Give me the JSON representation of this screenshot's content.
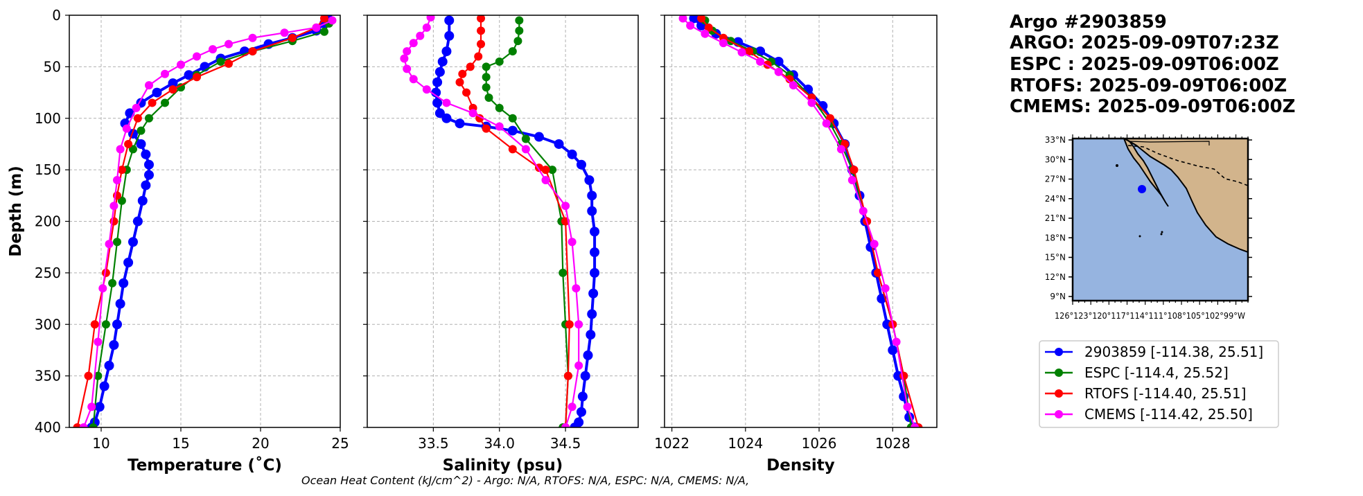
{
  "title_block": {
    "lines": [
      "Argo #2903859",
      "ARGO: 2025-09-09T07:23Z",
      "ESPC : 2025-09-09T06:00Z",
      "RTOFS: 2025-09-09T06:00Z",
      "CMEMS: 2025-09-09T06:00Z"
    ]
  },
  "footer": "Ocean Heat Content (kJ/cm^2) - Argo: N/A,  RTOFS: N/A,  ESPC: N/A,  CMEMS: N/A,",
  "colors": {
    "argo": "#0000ff",
    "espc": "#008000",
    "rtofs": "#ff0000",
    "cmems": "#ff00ff",
    "ocean": "#96b4e0",
    "land": "#d2b48c"
  },
  "legend": [
    {
      "label": "2903859 [-114.38, 25.51]",
      "color": "#0000ff"
    },
    {
      "label": "ESPC [-114.4, 25.52]",
      "color": "#008000"
    },
    {
      "label": "RTOFS [-114.40, 25.51]",
      "color": "#ff0000"
    },
    {
      "label": "CMEMS [-114.42, 25.50]",
      "color": "#ff00ff"
    }
  ],
  "map": {
    "lat_ticks": [
      "33°N",
      "30°N",
      "27°N",
      "24°N",
      "21°N",
      "18°N",
      "15°N",
      "12°N",
      "9°N"
    ],
    "lon_label_text": "126°123°120°117°114°111°108°105°102°99°W",
    "float_position": {
      "lon": -114.38,
      "lat": 25.51
    }
  },
  "chart_data": [
    {
      "type": "line",
      "name": "temperature",
      "xlabel": "Temperature (˚C)",
      "ylabel": "Depth (m)",
      "xlim": [
        8,
        25
      ],
      "ylim": [
        400,
        0
      ],
      "xticks": [
        10,
        15,
        20,
        25
      ],
      "yticks": [
        0,
        50,
        100,
        150,
        200,
        250,
        300,
        350,
        400
      ],
      "grid": true,
      "series": [
        {
          "name": "2903859",
          "color": "#0000ff",
          "x": [
            24.2,
            24.0,
            23.5,
            22.0,
            20.5,
            19.0,
            17.5,
            16.5,
            15.5,
            14.5,
            13.5,
            12.5,
            11.8,
            11.5,
            12.0,
            12.5,
            12.8,
            13.0,
            13.0,
            12.8,
            12.6,
            12.3,
            12.0,
            11.7,
            11.4,
            11.2,
            11.0,
            10.8,
            10.5,
            10.2,
            9.9,
            9.6,
            9.4
          ],
          "y": [
            2,
            8,
            15,
            22,
            28,
            35,
            42,
            50,
            58,
            66,
            75,
            85,
            95,
            105,
            115,
            125,
            135,
            145,
            155,
            165,
            180,
            200,
            220,
            240,
            260,
            280,
            300,
            320,
            340,
            360,
            380,
            395,
            400
          ]
        },
        {
          "name": "ESPC",
          "color": "#008000",
          "x": [
            24.3,
            24.0,
            22.0,
            19.5,
            17.5,
            16.0,
            15.0,
            14.0,
            13.0,
            12.5,
            12.0,
            11.6,
            11.3,
            11.0,
            10.7,
            10.3,
            9.8,
            9.5
          ],
          "y": [
            8,
            16,
            25,
            35,
            45,
            58,
            70,
            85,
            100,
            112,
            130,
            150,
            180,
            220,
            260,
            300,
            350,
            400
          ]
        },
        {
          "name": "RTOFS",
          "color": "#ff0000",
          "x": [
            24.0,
            23.5,
            22.0,
            19.5,
            18.0,
            16.0,
            14.5,
            13.2,
            12.3,
            11.7,
            11.3,
            11.0,
            10.8,
            10.3,
            9.6,
            9.2,
            8.5
          ],
          "y": [
            3,
            12,
            22,
            35,
            47,
            60,
            72,
            85,
            100,
            125,
            150,
            175,
            200,
            250,
            300,
            350,
            400
          ]
        },
        {
          "name": "CMEMS",
          "color": "#ff00ff",
          "x": [
            24.5,
            23.5,
            21.5,
            19.5,
            18.0,
            17.0,
            16.0,
            15.0,
            14.0,
            13.0,
            12.2,
            11.6,
            11.2,
            11.0,
            10.8,
            10.5,
            10.1,
            9.8,
            9.4,
            8.9
          ],
          "y": [
            5,
            12,
            17,
            22,
            28,
            33,
            40,
            48,
            57,
            68,
            90,
            110,
            130,
            160,
            185,
            222,
            265,
            317,
            380,
            400
          ]
        }
      ]
    },
    {
      "type": "line",
      "name": "salinity",
      "xlabel": "Salinity (psu)",
      "ylabel": "",
      "xlim": [
        33.0,
        35.05
      ],
      "ylim": [
        400,
        0
      ],
      "xticks": [
        33.5,
        34.0,
        34.5
      ],
      "yticks": [
        0,
        50,
        100,
        150,
        200,
        250,
        300,
        350,
        400
      ],
      "grid": true,
      "series": [
        {
          "name": "2903859",
          "color": "#0000ff",
          "x": [
            33.62,
            33.62,
            33.6,
            33.57,
            33.55,
            33.53,
            33.52,
            33.53,
            33.55,
            33.6,
            33.7,
            33.9,
            34.1,
            34.3,
            34.45,
            34.55,
            34.62,
            34.68,
            34.7,
            34.7,
            34.72,
            34.72,
            34.72,
            34.71,
            34.7,
            34.69,
            34.67,
            34.65,
            34.63,
            34.62,
            34.6,
            34.58,
            34.57
          ],
          "y": [
            5,
            20,
            35,
            45,
            55,
            65,
            75,
            85,
            95,
            100,
            105,
            108,
            112,
            118,
            125,
            135,
            145,
            160,
            175,
            190,
            210,
            230,
            250,
            270,
            290,
            310,
            330,
            350,
            370,
            385,
            395,
            400,
            400
          ]
        },
        {
          "name": "ESPC",
          "color": "#008000",
          "x": [
            34.15,
            34.15,
            34.14,
            34.1,
            34.0,
            33.9,
            33.9,
            33.9,
            33.92,
            34.0,
            34.1,
            34.2,
            34.4,
            34.47,
            34.48,
            34.5,
            34.52,
            34.5,
            34.48
          ],
          "y": [
            5,
            15,
            25,
            35,
            45,
            50,
            60,
            70,
            80,
            90,
            100,
            120,
            150,
            200,
            250,
            300,
            350,
            400,
            400
          ]
        },
        {
          "name": "RTOFS",
          "color": "#ff0000",
          "x": [
            33.86,
            33.86,
            33.86,
            33.84,
            33.78,
            33.72,
            33.7,
            33.75,
            33.8,
            33.85,
            33.9,
            34.1,
            34.3,
            34.35,
            34.5,
            34.53,
            34.52,
            34.5,
            34.5
          ],
          "y": [
            3,
            15,
            28,
            40,
            50,
            57,
            65,
            75,
            90,
            100,
            110,
            130,
            148,
            150,
            200,
            300,
            350,
            400,
            400
          ]
        },
        {
          "name": "CMEMS",
          "color": "#ff00ff",
          "x": [
            33.48,
            33.45,
            33.4,
            33.35,
            33.3,
            33.28,
            33.3,
            33.35,
            33.45,
            33.6,
            33.8,
            34.0,
            34.2,
            34.35,
            34.5,
            34.55,
            34.58,
            34.6,
            34.6,
            34.55,
            34.5
          ],
          "y": [
            2,
            12,
            20,
            27,
            35,
            42,
            52,
            62,
            72,
            85,
            95,
            108,
            130,
            160,
            185,
            220,
            265,
            300,
            340,
            380,
            400
          ]
        }
      ]
    },
    {
      "type": "line",
      "name": "density",
      "xlabel": "Density",
      "ylabel": "",
      "xlim": [
        1021.8,
        1029.2
      ],
      "ylim": [
        400,
        0
      ],
      "xticks": [
        1022,
        1024,
        1026,
        1028
      ],
      "yticks": [
        0,
        50,
        100,
        150,
        200,
        250,
        300,
        350,
        400
      ],
      "grid": true,
      "series": [
        {
          "name": "2903859",
          "color": "#0000ff",
          "x": [
            1022.6,
            1022.8,
            1023.2,
            1023.8,
            1024.4,
            1024.9,
            1025.3,
            1025.7,
            1026.1,
            1026.4,
            1026.7,
            1026.9,
            1027.1,
            1027.25,
            1027.4,
            1027.55,
            1027.7,
            1027.85,
            1028.0,
            1028.15,
            1028.3,
            1028.45,
            1028.55,
            1028.6
          ],
          "y": [
            3,
            10,
            18,
            26,
            35,
            45,
            58,
            72,
            88,
            105,
            125,
            150,
            175,
            200,
            225,
            250,
            275,
            300,
            325,
            350,
            370,
            390,
            400,
            400
          ]
        },
        {
          "name": "ESPC",
          "color": "#008000",
          "x": [
            1022.9,
            1023.1,
            1023.6,
            1024.2,
            1024.7,
            1025.2,
            1025.8,
            1026.3,
            1026.6,
            1026.9,
            1027.3,
            1027.6,
            1028.0,
            1028.3,
            1028.5
          ],
          "y": [
            5,
            15,
            25,
            35,
            45,
            58,
            80,
            105,
            125,
            150,
            200,
            250,
            300,
            350,
            400
          ]
        },
        {
          "name": "RTOFS",
          "color": "#ff0000",
          "x": [
            1022.8,
            1023.0,
            1023.4,
            1024.1,
            1024.6,
            1025.2,
            1025.8,
            1026.3,
            1026.7,
            1026.95,
            1027.3,
            1027.6,
            1028.0,
            1028.3,
            1028.7
          ],
          "y": [
            3,
            12,
            22,
            35,
            48,
            62,
            80,
            100,
            125,
            150,
            200,
            250,
            300,
            350,
            400
          ]
        },
        {
          "name": "CMEMS",
          "color": "#ff00ff",
          "x": [
            1022.3,
            1022.5,
            1022.9,
            1023.4,
            1023.9,
            1024.4,
            1024.9,
            1025.3,
            1025.8,
            1026.2,
            1026.6,
            1026.9,
            1027.2,
            1027.5,
            1027.8,
            1028.1,
            1028.4,
            1028.6
          ],
          "y": [
            3,
            10,
            18,
            27,
            36,
            45,
            55,
            68,
            85,
            105,
            130,
            160,
            190,
            222,
            265,
            317,
            380,
            400
          ]
        }
      ]
    }
  ]
}
